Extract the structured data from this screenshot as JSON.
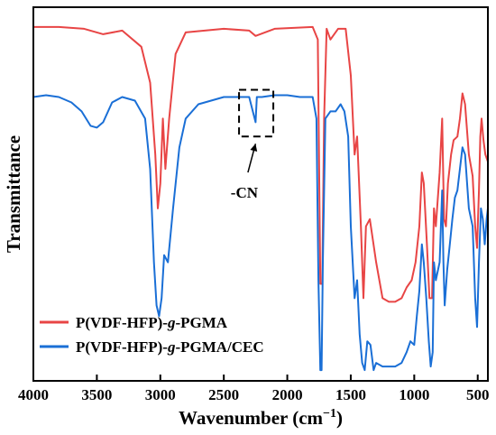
{
  "chart_data": {
    "type": "line",
    "title": "",
    "xlabel": "Wavenumber (cm",
    "xlabel_sup": "−1",
    "xlabel_close": ")",
    "ylabel": "Transmittance",
    "xlim": [
      4000,
      420
    ],
    "x_ticks": [
      4000,
      3500,
      3000,
      2500,
      2000,
      1500,
      1000,
      500
    ],
    "x_tick_labels": [
      "4000",
      "3500",
      "3000",
      "2500",
      "2000",
      "1500",
      "1000",
      "500"
    ],
    "y_ticks_shown": false,
    "grid": false,
    "legend_position": "bottom-left",
    "series": [
      {
        "name": "P(VDF-HFP)-",
        "name_italic": "g",
        "name_suffix": "-PGMA",
        "color": "#e84545",
        "points": [
          [
            4000,
            0.955
          ],
          [
            3800,
            0.955
          ],
          [
            3600,
            0.95
          ],
          [
            3450,
            0.935
          ],
          [
            3300,
            0.945
          ],
          [
            3150,
            0.9
          ],
          [
            3080,
            0.8
          ],
          [
            3040,
            0.6
          ],
          [
            3020,
            0.45
          ],
          [
            3000,
            0.52
          ],
          [
            2980,
            0.7
          ],
          [
            2960,
            0.56
          ],
          [
            2930,
            0.7
          ],
          [
            2880,
            0.88
          ],
          [
            2800,
            0.94
          ],
          [
            2500,
            0.95
          ],
          [
            2300,
            0.945
          ],
          [
            2250,
            0.93
          ],
          [
            2100,
            0.95
          ],
          [
            1800,
            0.955
          ],
          [
            1760,
            0.92
          ],
          [
            1740,
            0.24
          ],
          [
            1725,
            0.24
          ],
          [
            1710,
            0.7
          ],
          [
            1690,
            0.95
          ],
          [
            1660,
            0.92
          ],
          [
            1600,
            0.95
          ],
          [
            1540,
            0.95
          ],
          [
            1500,
            0.82
          ],
          [
            1470,
            0.6
          ],
          [
            1450,
            0.65
          ],
          [
            1420,
            0.4
          ],
          [
            1400,
            0.2
          ],
          [
            1380,
            0.4
          ],
          [
            1350,
            0.42
          ],
          [
            1300,
            0.3
          ],
          [
            1250,
            0.2
          ],
          [
            1200,
            0.19
          ],
          [
            1150,
            0.19
          ],
          [
            1100,
            0.2
          ],
          [
            1060,
            0.23
          ],
          [
            1020,
            0.25
          ],
          [
            990,
            0.3
          ],
          [
            960,
            0.4
          ],
          [
            940,
            0.55
          ],
          [
            925,
            0.52
          ],
          [
            900,
            0.35
          ],
          [
            880,
            0.2
          ],
          [
            860,
            0.2
          ],
          [
            845,
            0.45
          ],
          [
            830,
            0.4
          ],
          [
            800,
            0.55
          ],
          [
            780,
            0.7
          ],
          [
            765,
            0.42
          ],
          [
            750,
            0.4
          ],
          [
            735,
            0.52
          ],
          [
            710,
            0.6
          ],
          [
            690,
            0.64
          ],
          [
            660,
            0.65
          ],
          [
            640,
            0.7
          ],
          [
            620,
            0.77
          ],
          [
            600,
            0.74
          ],
          [
            570,
            0.6
          ],
          [
            540,
            0.54
          ],
          [
            520,
            0.4
          ],
          [
            505,
            0.34
          ],
          [
            490,
            0.5
          ],
          [
            480,
            0.65
          ],
          [
            470,
            0.7
          ],
          [
            455,
            0.64
          ],
          [
            440,
            0.6
          ],
          [
            420,
            0.58
          ]
        ]
      },
      {
        "name": "P(VDF-HFP)-",
        "name_italic": "g",
        "name_suffix": "-PGMA/CEC",
        "color": "#1a6fd6",
        "points": [
          [
            4000,
            0.76
          ],
          [
            3900,
            0.765
          ],
          [
            3800,
            0.76
          ],
          [
            3700,
            0.745
          ],
          [
            3620,
            0.72
          ],
          [
            3550,
            0.68
          ],
          [
            3500,
            0.675
          ],
          [
            3450,
            0.69
          ],
          [
            3380,
            0.745
          ],
          [
            3300,
            0.76
          ],
          [
            3200,
            0.75
          ],
          [
            3120,
            0.7
          ],
          [
            3080,
            0.56
          ],
          [
            3050,
            0.3
          ],
          [
            3030,
            0.18
          ],
          [
            3010,
            0.15
          ],
          [
            2990,
            0.2
          ],
          [
            2970,
            0.32
          ],
          [
            2940,
            0.3
          ],
          [
            2900,
            0.45
          ],
          [
            2850,
            0.62
          ],
          [
            2800,
            0.7
          ],
          [
            2700,
            0.74
          ],
          [
            2500,
            0.76
          ],
          [
            2300,
            0.76
          ],
          [
            2250,
            0.69
          ],
          [
            2240,
            0.76
          ],
          [
            2200,
            0.76
          ],
          [
            2100,
            0.765
          ],
          [
            2000,
            0.765
          ],
          [
            1900,
            0.76
          ],
          [
            1800,
            0.76
          ],
          [
            1770,
            0.7
          ],
          [
            1755,
            0.25
          ],
          [
            1740,
            0.0
          ],
          [
            1730,
            0.0
          ],
          [
            1720,
            0.3
          ],
          [
            1700,
            0.7
          ],
          [
            1660,
            0.72
          ],
          [
            1620,
            0.72
          ],
          [
            1580,
            0.74
          ],
          [
            1550,
            0.72
          ],
          [
            1520,
            0.65
          ],
          [
            1500,
            0.4
          ],
          [
            1470,
            0.2
          ],
          [
            1450,
            0.25
          ],
          [
            1430,
            0.1
          ],
          [
            1410,
            0.02
          ],
          [
            1390,
            0.0
          ],
          [
            1370,
            0.08
          ],
          [
            1345,
            0.07
          ],
          [
            1320,
            0.0
          ],
          [
            1300,
            0.02
          ],
          [
            1250,
            0.01
          ],
          [
            1200,
            0.01
          ],
          [
            1150,
            0.01
          ],
          [
            1100,
            0.02
          ],
          [
            1060,
            0.05
          ],
          [
            1030,
            0.08
          ],
          [
            1000,
            0.07
          ],
          [
            980,
            0.15
          ],
          [
            960,
            0.22
          ],
          [
            940,
            0.35
          ],
          [
            925,
            0.3
          ],
          [
            905,
            0.2
          ],
          [
            885,
            0.08
          ],
          [
            870,
            0.01
          ],
          [
            855,
            0.05
          ],
          [
            845,
            0.3
          ],
          [
            830,
            0.25
          ],
          [
            800,
            0.3
          ],
          [
            780,
            0.5
          ],
          [
            770,
            0.3
          ],
          [
            760,
            0.18
          ],
          [
            740,
            0.28
          ],
          [
            720,
            0.35
          ],
          [
            700,
            0.42
          ],
          [
            680,
            0.48
          ],
          [
            660,
            0.5
          ],
          [
            640,
            0.56
          ],
          [
            620,
            0.62
          ],
          [
            600,
            0.6
          ],
          [
            570,
            0.45
          ],
          [
            540,
            0.4
          ],
          [
            520,
            0.2
          ],
          [
            505,
            0.12
          ],
          [
            490,
            0.3
          ],
          [
            475,
            0.45
          ],
          [
            460,
            0.42
          ],
          [
            445,
            0.35
          ],
          [
            430,
            0.42
          ],
          [
            420,
            0.45
          ]
        ]
      }
    ],
    "annotation": {
      "label": "-CN",
      "box_x_range": [
        2380,
        2110
      ],
      "box_y_range": [
        0.65,
        0.78
      ],
      "arrow_from": [
        2310,
        0.55
      ],
      "arrow_to": [
        2250,
        0.63
      ]
    },
    "y_range": [
      -0.03,
      1.01
    ]
  }
}
